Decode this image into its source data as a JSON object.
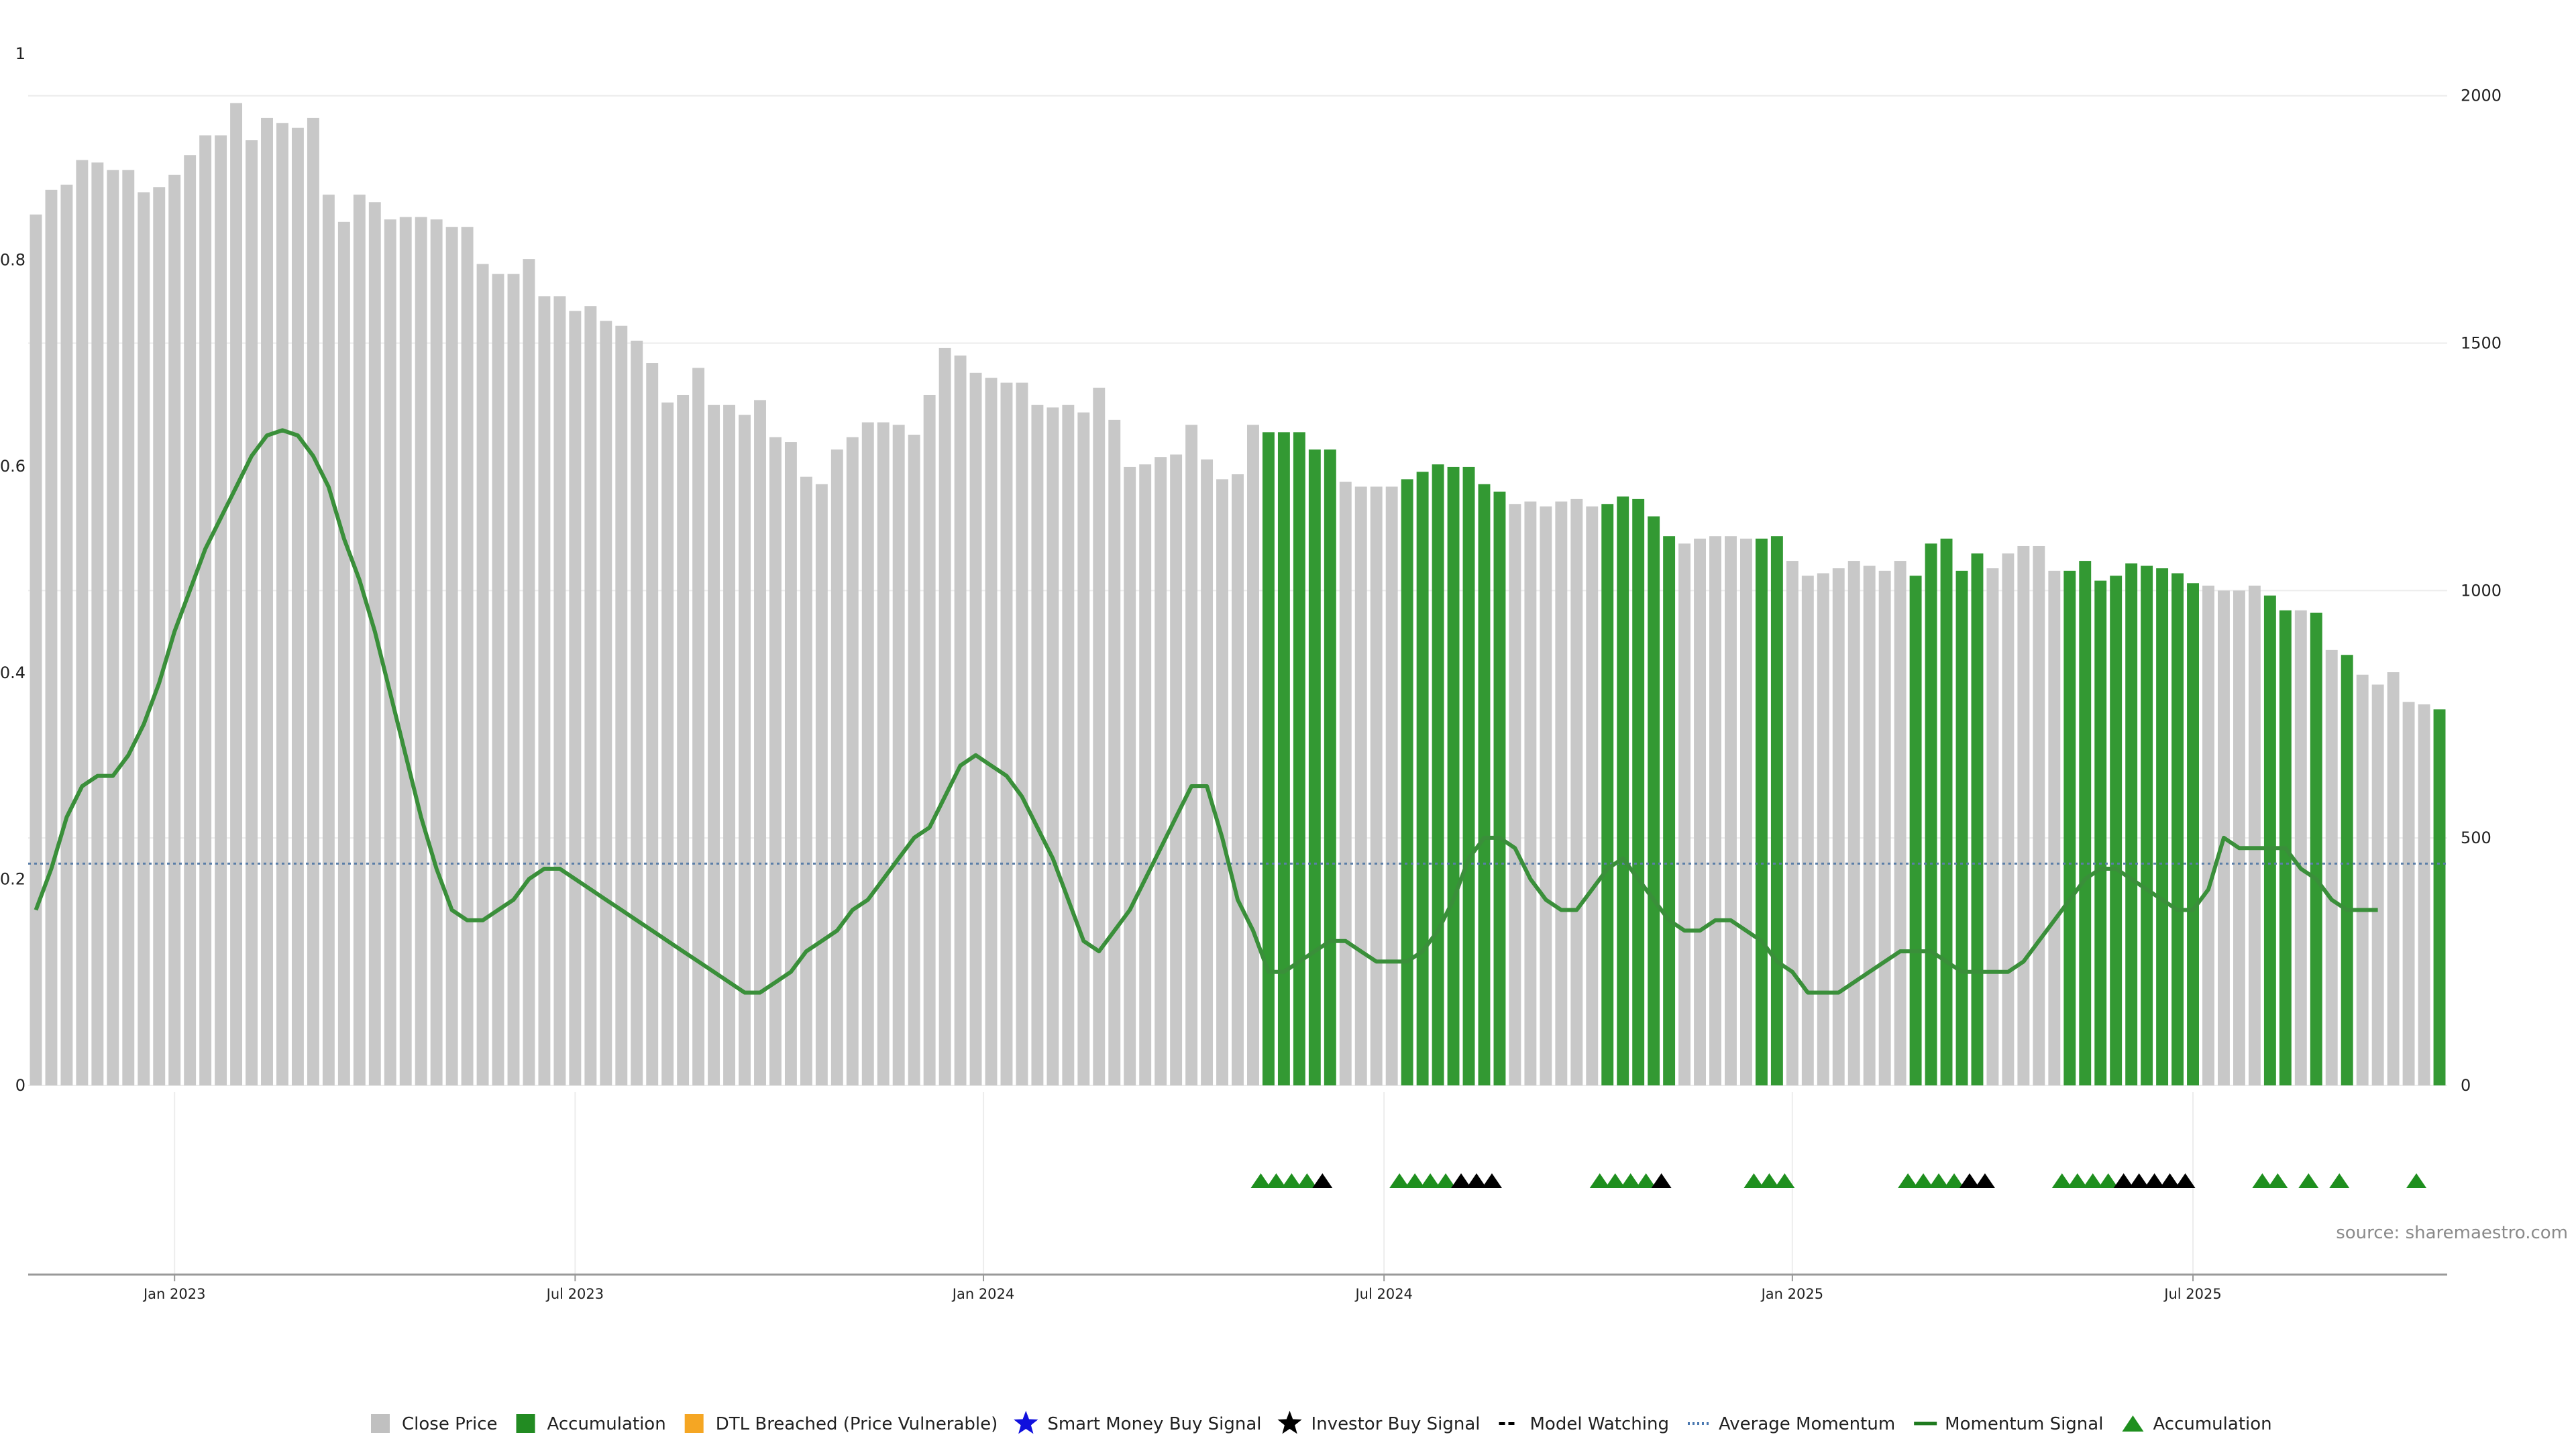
{
  "chart_data": {
    "type": "bar",
    "source": "source: sharemaestro.com",
    "left_axis": {
      "ylim": [
        0,
        1
      ],
      "ticks": [
        "0",
        "0.2",
        "0.4",
        "0.6",
        "0.8",
        "1"
      ]
    },
    "right_axis": {
      "ylim": [
        0,
        2085
      ],
      "ticks": [
        "0",
        "500",
        "1000",
        "1500",
        "2000"
      ]
    },
    "x_ticks": [
      "Jan 2023",
      "Jul 2023",
      "Jan 2024",
      "Jul 2024",
      "Jan 2025",
      "Jul 2025"
    ],
    "x_tick_weeks": [
      9,
      35,
      61.5,
      87.5,
      114,
      140
    ],
    "average_momentum": 0.215,
    "colors": {
      "close": "#c8c8c8",
      "accumulation": "#339933",
      "momentum": "#3a8f3a",
      "average": "#5a7ea8",
      "triangle": "#1e8f1e",
      "investor": "#000000"
    },
    "close_prices": [
      1760,
      1810,
      1820,
      1870,
      1865,
      1850,
      1850,
      1805,
      1815,
      1840,
      1880,
      1920,
      1920,
      1985,
      1910,
      1955,
      1945,
      1935,
      1955,
      1800,
      1745,
      1800,
      1785,
      1750,
      1755,
      1755,
      1750,
      1735,
      1735,
      1660,
      1640,
      1640,
      1670,
      1595,
      1595,
      1565,
      1575,
      1545,
      1535,
      1505,
      1460,
      1380,
      1395,
      1450,
      1375,
      1375,
      1355,
      1385,
      1310,
      1300,
      1230,
      1215,
      1285,
      1310,
      1340,
      1340,
      1335,
      1315,
      1395,
      1490,
      1475,
      1440,
      1430,
      1420,
      1420,
      1375,
      1370,
      1375,
      1360,
      1410,
      1345,
      1250,
      1255,
      1270,
      1275,
      1335,
      1265,
      1225,
      1235,
      1335,
      1320,
      1320,
      1320,
      1285,
      1285,
      1220,
      1210,
      1210,
      1210,
      1225,
      1240,
      1255,
      1250,
      1250,
      1215,
      1200,
      1175,
      1180,
      1170,
      1180,
      1185,
      1170,
      1175,
      1190,
      1185,
      1150,
      1110,
      1095,
      1105,
      1110,
      1110,
      1105,
      1105,
      1110,
      1060,
      1030,
      1035,
      1045,
      1060,
      1050,
      1040,
      1060,
      1030,
      1095,
      1105,
      1040,
      1075,
      1045,
      1075,
      1090,
      1090,
      1040,
      1040,
      1060,
      1020,
      1030,
      1055,
      1050,
      1045,
      1035,
      1015,
      1010,
      1000,
      1000,
      1010,
      990,
      960,
      960,
      955,
      880,
      870,
      830,
      810,
      835,
      775,
      770,
      760
    ],
    "accumulation_weeks": [
      80,
      81,
      82,
      83,
      84,
      89,
      90,
      91,
      92,
      93,
      94,
      95,
      102,
      103,
      104,
      105,
      106,
      112,
      113,
      122,
      123,
      124,
      125,
      126,
      132,
      133,
      134,
      135,
      136,
      137,
      138,
      139,
      140,
      145,
      146,
      148,
      150,
      156
    ],
    "momentum_signal": [
      0.17,
      0.21,
      0.26,
      0.29,
      0.3,
      0.3,
      0.32,
      0.35,
      0.39,
      0.44,
      0.48,
      0.52,
      0.55,
      0.58,
      0.61,
      0.63,
      0.635,
      0.63,
      0.61,
      0.58,
      0.53,
      0.49,
      0.44,
      0.38,
      0.32,
      0.26,
      0.21,
      0.17,
      0.16,
      0.16,
      0.17,
      0.18,
      0.2,
      0.21,
      0.21,
      0.2,
      0.19,
      0.18,
      0.17,
      0.16,
      0.15,
      0.14,
      0.13,
      0.12,
      0.11,
      0.1,
      0.09,
      0.09,
      0.1,
      0.11,
      0.13,
      0.14,
      0.15,
      0.17,
      0.18,
      0.2,
      0.22,
      0.24,
      0.25,
      0.28,
      0.31,
      0.32,
      0.31,
      0.3,
      0.28,
      0.25,
      0.22,
      0.18,
      0.14,
      0.13,
      0.15,
      0.17,
      0.2,
      0.23,
      0.26,
      0.29,
      0.29,
      0.24,
      0.18,
      0.15,
      0.11,
      0.11,
      0.12,
      0.13,
      0.14,
      0.14,
      0.13,
      0.12,
      0.12,
      0.12,
      0.13,
      0.15,
      0.18,
      0.22,
      0.24,
      0.24,
      0.23,
      0.2,
      0.18,
      0.17,
      0.17,
      0.19,
      0.21,
      0.22,
      0.2,
      0.18,
      0.16,
      0.15,
      0.15,
      0.16,
      0.16,
      0.15,
      0.14,
      0.12,
      0.11,
      0.09,
      0.09,
      0.09,
      0.1,
      0.11,
      0.12,
      0.13,
      0.13,
      0.13,
      0.12,
      0.11,
      0.11,
      0.11,
      0.11,
      0.12,
      0.14,
      0.16,
      0.18,
      0.2,
      0.21,
      0.21,
      0.2,
      0.19,
      0.18,
      0.17,
      0.17,
      0.19,
      0.24,
      0.23,
      0.23,
      0.23,
      0.23,
      0.21,
      0.2,
      0.18,
      0.17,
      0.17,
      0.17
    ],
    "triangle_weeks": [
      79.5,
      80.5,
      81.5,
      82.5,
      88.5,
      89.5,
      90.5,
      91.5,
      101.5,
      102.5,
      103.5,
      104.5,
      111.5,
      112.5,
      113.5,
      121.5,
      122.5,
      123.5,
      124.5,
      131.5,
      132.5,
      133.5,
      134.5,
      144.5,
      145.5,
      147.5,
      149.5,
      154.5
    ],
    "investor_weeks": [
      83.5,
      92.5,
      93.5,
      94.5,
      105.5,
      125.5,
      126.5,
      135.5,
      136.5,
      137.5,
      138.5,
      139.5
    ],
    "legend": [
      {
        "label": "Close Price",
        "type": "square",
        "color": "#c0c0c0"
      },
      {
        "label": "Accumulation",
        "type": "square",
        "color": "#228b22"
      },
      {
        "label": "DTL Breached (Price Vulnerable)",
        "type": "square",
        "color": "#f5a623"
      },
      {
        "label": "Smart Money Buy Signal",
        "type": "star",
        "color": "#1010dd"
      },
      {
        "label": "Investor Buy Signal",
        "type": "star",
        "color": "#000000"
      },
      {
        "label": "Model Watching",
        "type": "dash",
        "color": "#000000"
      },
      {
        "label": "Average Momentum",
        "type": "dot",
        "color": "#4a78b0"
      },
      {
        "label": "Momentum Signal",
        "type": "line",
        "color": "#1e7a1e"
      },
      {
        "label": "Accumulation",
        "type": "triangle",
        "color": "#1e8f1e"
      }
    ]
  }
}
